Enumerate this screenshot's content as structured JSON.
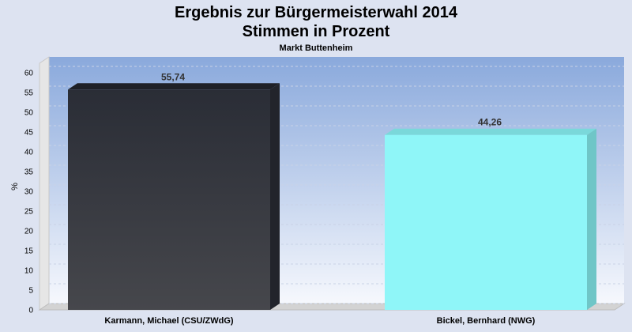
{
  "chart_data": {
    "type": "bar",
    "title": "Ergebnis zur Bürgermeisterwahl 2014",
    "subtitle": "Stimmen in Prozent",
    "caption": "Markt Buttenheim",
    "ylabel": "%",
    "xlabel": "",
    "ylim": [
      0,
      60
    ],
    "yticks": [
      "0",
      "5",
      "10",
      "15",
      "20",
      "25",
      "30",
      "35",
      "40",
      "45",
      "50",
      "55",
      "60"
    ],
    "grid": true,
    "categories": [
      "Karmann, Michael (CSU/ZWdG)",
      "Bickel, Bernhard (NWG)"
    ],
    "values": [
      55.74,
      44.26
    ],
    "value_labels": [
      "55,74",
      "44,26"
    ],
    "colors": [
      "#3a3d46",
      "#8ff6f8"
    ]
  }
}
